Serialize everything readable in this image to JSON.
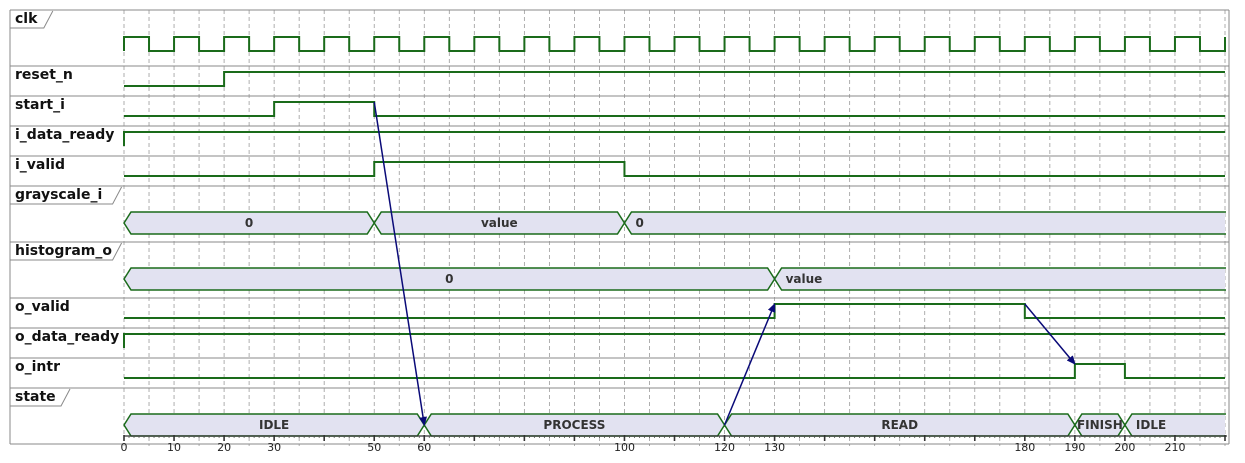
{
  "colors": {
    "wave": "#1a6b1a",
    "bus_fill": "#e2e2f1",
    "arrow": "#0a0a78",
    "grid": "#9a9a9a",
    "separator": "#8a8a8a",
    "text": "#111111"
  },
  "time": {
    "start": 0,
    "end": 220,
    "clock_period": 10
  },
  "axis": {
    "labeled_ticks": [
      0,
      10,
      20,
      30,
      50,
      60,
      100,
      120,
      130,
      180,
      190,
      200,
      210
    ],
    "major_ticks": [
      0,
      10,
      20,
      30,
      40,
      50,
      60,
      70,
      80,
      90,
      100,
      110,
      120,
      130,
      140,
      150,
      160,
      170,
      180,
      190,
      200,
      210,
      220
    ]
  },
  "signals": [
    {
      "name": "clk",
      "type": "clock",
      "tall": true,
      "labels_bus": false
    },
    {
      "name": "reset_n",
      "type": "bit",
      "init": 0,
      "transitions": [
        [
          20,
          1
        ]
      ]
    },
    {
      "name": "start_i",
      "type": "bit",
      "init": 0,
      "transitions": [
        [
          30,
          1
        ],
        [
          50,
          0
        ]
      ]
    },
    {
      "name": "i_data_ready",
      "type": "bit",
      "init": 0,
      "transitions": [
        [
          0,
          1
        ]
      ]
    },
    {
      "name": "i_valid",
      "type": "bit",
      "init": 0,
      "transitions": [
        [
          50,
          1
        ],
        [
          100,
          0
        ]
      ]
    },
    {
      "name": "grayscale_i",
      "type": "bus",
      "tall": true,
      "segments": [
        {
          "start": 0,
          "end": 50,
          "label": "0",
          "align": "center"
        },
        {
          "start": 50,
          "end": 100,
          "label": "value",
          "align": "center"
        },
        {
          "start": 100,
          "end": 220,
          "label": "0",
          "align": "left"
        }
      ]
    },
    {
      "name": "histogram_o",
      "type": "bus",
      "tall": true,
      "segments": [
        {
          "start": 0,
          "end": 130,
          "label": "0",
          "align": "center"
        },
        {
          "start": 130,
          "end": 220,
          "label": "value",
          "align": "left"
        }
      ]
    },
    {
      "name": "o_valid",
      "type": "bit",
      "init": 0,
      "transitions": [
        [
          130,
          1
        ],
        [
          180,
          0
        ]
      ]
    },
    {
      "name": "o_data_ready",
      "type": "bit",
      "init": 0,
      "transitions": [
        [
          0,
          1
        ]
      ]
    },
    {
      "name": "o_intr",
      "type": "bit",
      "init": 0,
      "transitions": [
        [
          190,
          1
        ],
        [
          200,
          0
        ]
      ]
    },
    {
      "name": "state",
      "type": "bus",
      "tall": true,
      "segments": [
        {
          "start": 0,
          "end": 60,
          "label": "IDLE",
          "align": "center"
        },
        {
          "start": 60,
          "end": 120,
          "label": "PROCESS",
          "align": "center"
        },
        {
          "start": 120,
          "end": 190,
          "label": "READ",
          "align": "center"
        },
        {
          "start": 190,
          "end": 200,
          "label": "FINISH",
          "align": "center"
        },
        {
          "start": 200,
          "end": 220,
          "label": "IDLE",
          "align": "left"
        }
      ]
    }
  ],
  "arrows": [
    {
      "from": {
        "signal": "start_i",
        "time": 50,
        "level": "high"
      },
      "to": {
        "signal": "state",
        "time": 60,
        "level": "mid"
      }
    },
    {
      "from": {
        "signal": "state",
        "time": 120,
        "level": "mid"
      },
      "to": {
        "signal": "o_valid",
        "time": 130,
        "level": "high"
      }
    },
    {
      "from": {
        "signal": "o_valid",
        "time": 180,
        "level": "high"
      },
      "to": {
        "signal": "o_intr",
        "time": 190,
        "level": "high"
      }
    }
  ]
}
